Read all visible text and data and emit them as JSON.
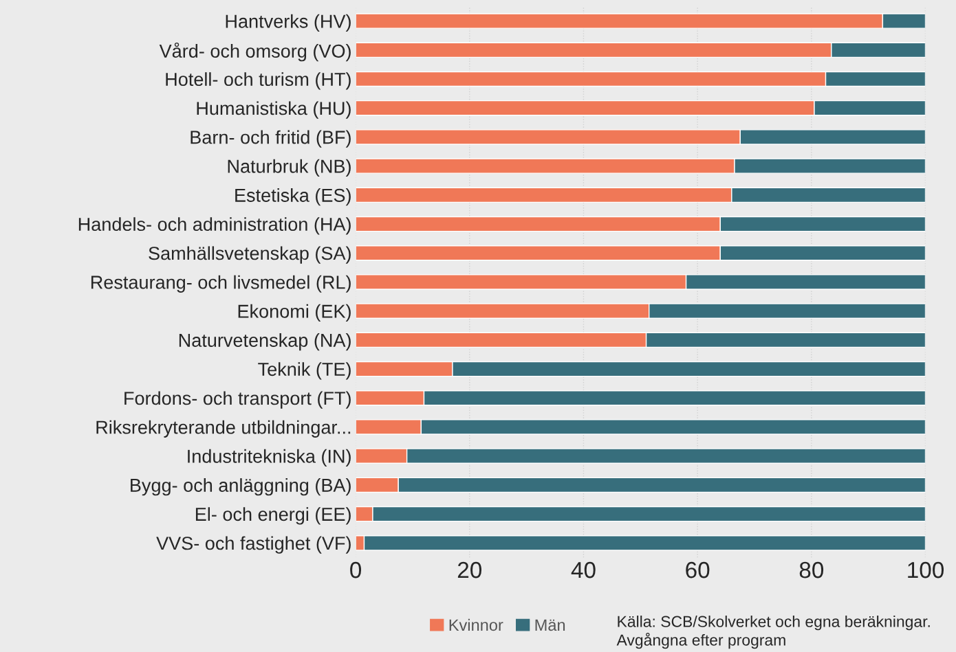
{
  "chart_data": {
    "type": "bar",
    "orientation": "horizontal",
    "stacked": true,
    "categories": [
      "Hantverks (HV)",
      "Vård- och omsorg (VO)",
      "Hotell- och turism (HT)",
      "Humanistiska (HU)",
      "Barn- och fritid (BF)",
      "Naturbruk (NB)",
      "Estetiska (ES)",
      "Handels- och administration (HA)",
      "Samhällsvetenskap (SA)",
      "Restaurang- och livsmedel (RL)",
      "Ekonomi (EK)",
      "Naturvetenskap (NA)",
      "Teknik (TE)",
      "Fordons- och transport (FT)",
      "Riksrekryterande utbildningar...",
      "Industritekniska (IN)",
      "Bygg- och anläggning (BA)",
      "El- och energi (EE)",
      "VVS- och fastighet (VF)"
    ],
    "series": [
      {
        "name": "Kvinnor",
        "color": "#f07857",
        "values": [
          92.5,
          83.5,
          82.5,
          80.5,
          67.5,
          66.5,
          66,
          64,
          64,
          58,
          51.5,
          51,
          17,
          12,
          11.5,
          9,
          7.5,
          3,
          1.5
        ]
      },
      {
        "name": "Män",
        "color": "#376e7c",
        "values": [
          7.5,
          16.5,
          17.5,
          19.5,
          32.5,
          33.5,
          34,
          36,
          36,
          42,
          48.5,
          49,
          83,
          88,
          88.5,
          91,
          92.5,
          97,
          98.5
        ]
      }
    ],
    "xlim": [
      0,
      100
    ],
    "xticks": [
      0,
      20,
      40,
      60,
      80,
      100
    ],
    "grid": "x",
    "legend": "bottom",
    "annotations": [
      "Källa: SCB/Skolverket och egna beräkningar. Avgångna efter program"
    ]
  }
}
